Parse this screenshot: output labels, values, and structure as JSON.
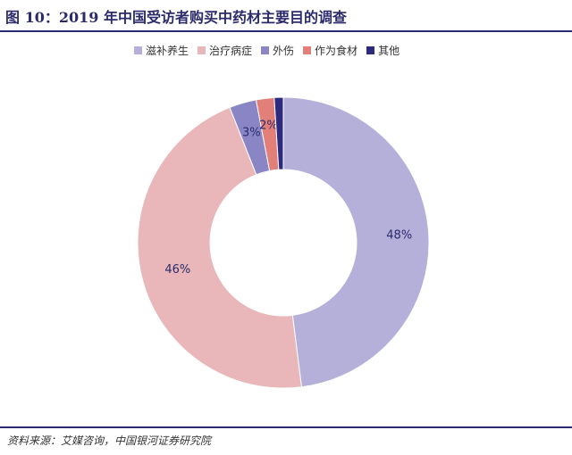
{
  "header": {
    "title": "图 10：2019 年中国受访者购买中药材主要目的调查"
  },
  "footer": {
    "source": "资料来源：艾媒咨询，中国银河证券研究院"
  },
  "chart_data": {
    "type": "pie",
    "variant": "donut",
    "title": "图 10：2019 年中国受访者购买中药材主要目的调查",
    "legend_position": "top",
    "categories": [
      "滋补养生",
      "治疗病症",
      "外伤",
      "作为食材",
      "其他"
    ],
    "values": [
      48,
      46,
      3,
      2,
      1
    ],
    "labels": [
      "48%",
      "46%",
      "3%",
      "2%",
      ""
    ],
    "colors": [
      "#b4b0da",
      "#e9b7b9",
      "#8a86c5",
      "#e27f79",
      "#2e2b7e"
    ]
  }
}
